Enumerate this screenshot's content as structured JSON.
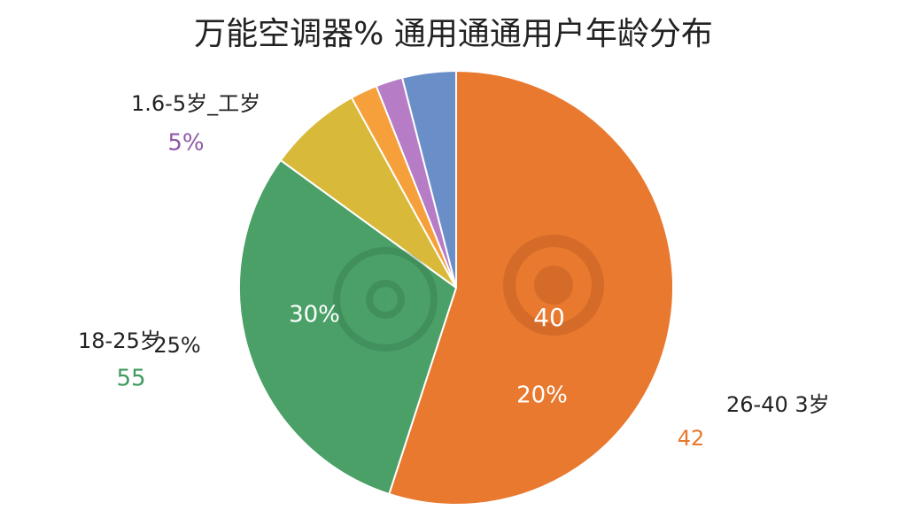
{
  "chart_data": {
    "type": "pie",
    "title": "万能空调器% 通用通通用户年龄分布",
    "categories": [
      "26-40 3岁",
      "18-25岁",
      "1.6-5岁_工岁",
      null,
      null,
      null
    ],
    "values": [
      55,
      30,
      7,
      2,
      2,
      4
    ],
    "colors": [
      "#e8792f",
      "#4aa067",
      "#d9b93a",
      "#f5a03a",
      "#b77cc6",
      "#6a8fc8"
    ],
    "annotations": [
      {
        "text": "5%",
        "color": "#8e5aa6"
      },
      {
        "text": "30%",
        "color": "#ffffff"
      },
      {
        "text": "40",
        "color": "#ffffff"
      },
      {
        "text": "20%",
        "color": "#ffffff"
      },
      {
        "text": "25%",
        "color": "#222222"
      },
      {
        "text": "55",
        "color": "#3f9a5e"
      },
      {
        "text": "42",
        "color": "#e8792f"
      }
    ]
  }
}
